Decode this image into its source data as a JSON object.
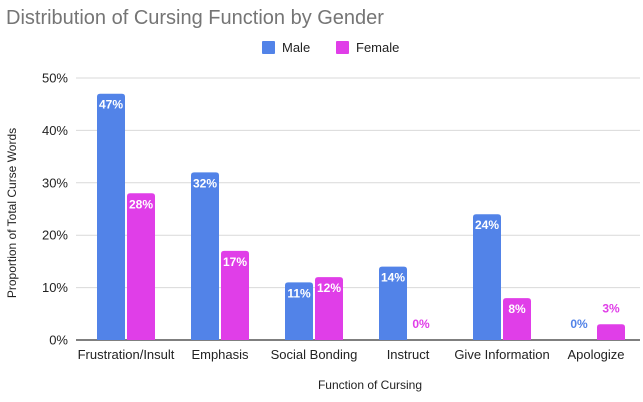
{
  "chart_data": {
    "type": "bar",
    "title": "Distribution of Cursing Function by Gender",
    "xlabel": "Function of Cursing",
    "ylabel": "Proportion of Total Curse Words",
    "categories": [
      "Frustration/Insult",
      "Emphasis",
      "Social Bonding",
      "Instruct",
      "Give Information",
      "Apologize"
    ],
    "series": [
      {
        "name": "Male",
        "color": "#5283e8",
        "values": [
          47,
          32,
          11,
          14,
          24,
          0
        ]
      },
      {
        "name": "Female",
        "color": "#e03ee8",
        "values": [
          28,
          17,
          12,
          0,
          8,
          3
        ]
      }
    ],
    "ylim": [
      0,
      50
    ],
    "yticks": [
      0,
      10,
      20,
      30,
      40,
      50
    ],
    "ytick_labels": [
      "0%",
      "10%",
      "20%",
      "30%",
      "40%",
      "50%"
    ],
    "data_labels": [
      [
        "47%",
        "32%",
        "11%",
        "14%",
        "24%",
        "0%"
      ],
      [
        "28%",
        "17%",
        "12%",
        "0%",
        "8%",
        "3%"
      ]
    ],
    "legend_position": "top-center",
    "grid": true,
    "gridline_color": "#d9d9d9",
    "axis_color": "#333333"
  }
}
